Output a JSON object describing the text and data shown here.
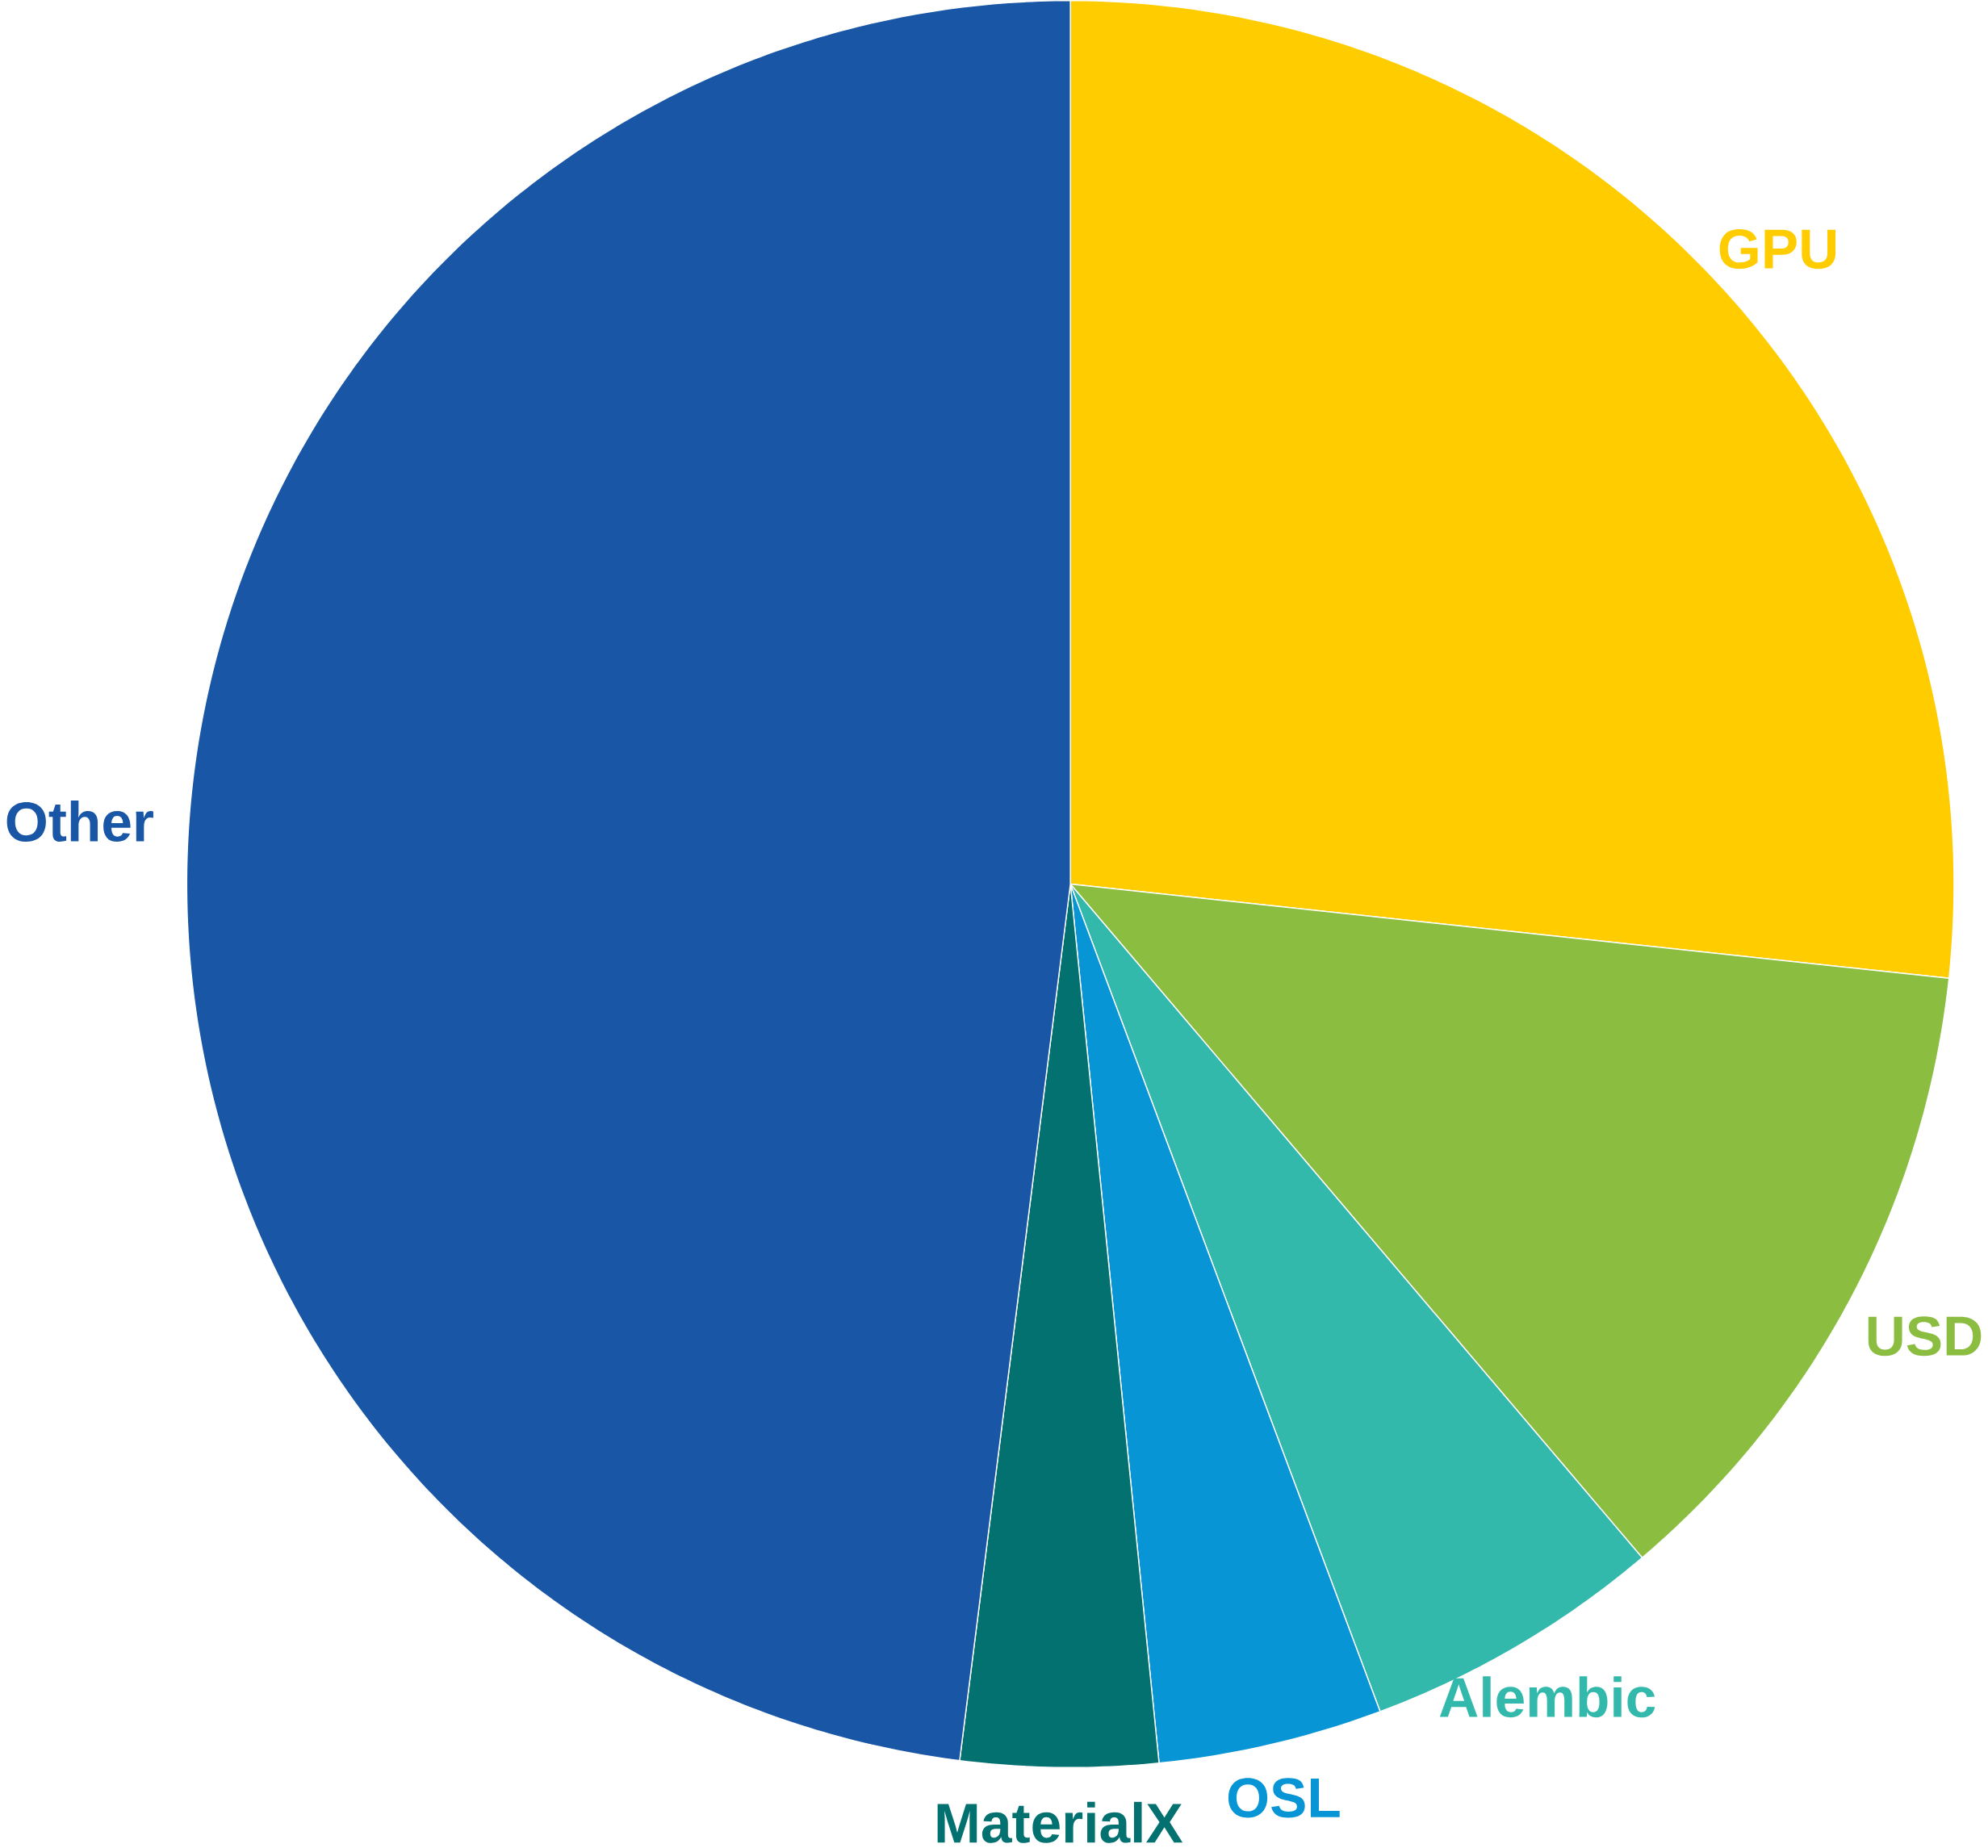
{
  "chart_data": {
    "type": "pie",
    "categories": [
      "GPU",
      "USD",
      "Alembic",
      "OSL",
      "MaterialX",
      "Other"
    ],
    "values": [
      26.7,
      12.1,
      5.5,
      4.1,
      3.6,
      48.0
    ],
    "colors": [
      "#ffcc00",
      "#8bbd41",
      "#33b9ac",
      "#0895d6",
      "#037170",
      "#1957a6"
    ]
  }
}
